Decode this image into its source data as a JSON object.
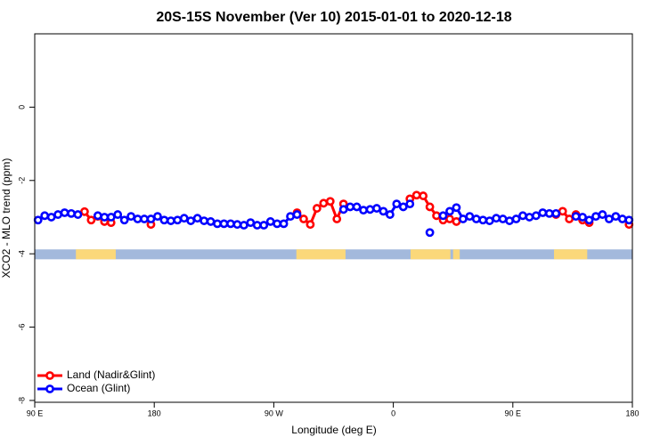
{
  "chart_data": {
    "type": "line",
    "title": "20S-15S November (Ver 10)   2015-01-01 to 2020-12-18",
    "x_label": "Longitude (deg E)",
    "y_label": "XCO2 - MLO trend (ppm)",
    "xlim": [
      90,
      540
    ],
    "ylim": [
      -8.05,
      2
    ],
    "xticks": [
      {
        "value": 90,
        "label": "90 E"
      },
      180,
      {
        "value": 270,
        "label": "90 W"
      },
      {
        "value": 360,
        "label": "0"
      },
      {
        "value": 450,
        "label": "90 E"
      },
      {
        "value": 540,
        "label": "180"
      }
    ],
    "yticks": [
      0,
      -2,
      -4,
      -6,
      -8
    ],
    "legend": "bottomleft",
    "surface_strip": {
      "y": [
        -4.15,
        -3.88
      ],
      "ocean_color": "#a3b9dc",
      "land_color": "#fbd87a",
      "land": [
        [
          121,
          151
        ],
        [
          287,
          324
        ],
        [
          373,
          403
        ],
        [
          405,
          410
        ],
        [
          481,
          506
        ]
      ]
    },
    "x": [
      92.5,
      97.5,
      102.5,
      107.5,
      112.5,
      117.5,
      122.5,
      127.5,
      132.5,
      137.5,
      142.5,
      147.5,
      152.5,
      157.5,
      162.5,
      167.5,
      172.5,
      177.5,
      182.5,
      187.5,
      192.5,
      197.5,
      202.5,
      207.5,
      212.5,
      217.5,
      222.5,
      227.5,
      232.5,
      237.5,
      242.5,
      247.5,
      252.5,
      257.5,
      262.5,
      267.5,
      272.5,
      277.5,
      282.5,
      287.5,
      292.5,
      297.5,
      302.5,
      307.5,
      312.5,
      317.5,
      322.5,
      327.5,
      332.5,
      337.5,
      342.5,
      347.5,
      352.5,
      357.5,
      362.5,
      367.5,
      372.5,
      377.5,
      382.5,
      387.5,
      392.5,
      397.5,
      402.5,
      407.5,
      412.5,
      417.5,
      422.5,
      427.5,
      432.5,
      437.5,
      442.5,
      447.5,
      452.5,
      457.5,
      462.5,
      467.5,
      472.5,
      477.5,
      482.5,
      487.5,
      492.5,
      497.5,
      502.5,
      507.5,
      512.5,
      517.5,
      522.5,
      527.5,
      532.5,
      537.5
    ],
    "series": [
      {
        "name": "Land (Nadir&Glint)",
        "color": "#ff0000",
        "values": [
          null,
          null,
          null,
          null,
          null,
          null,
          null,
          -2.85,
          -3.08,
          -2.98,
          -3.12,
          -3.15,
          null,
          null,
          null,
          null,
          null,
          -3.2,
          null,
          null,
          null,
          null,
          null,
          null,
          null,
          null,
          null,
          null,
          null,
          null,
          null,
          null,
          null,
          null,
          null,
          null,
          null,
          null,
          null,
          -2.88,
          -3.05,
          -3.2,
          -2.76,
          -2.62,
          -2.57,
          -3.05,
          -2.64,
          null,
          null,
          null,
          null,
          null,
          null,
          null,
          null,
          null,
          -2.5,
          -2.4,
          -2.42,
          -2.72,
          -2.96,
          -3.08,
          -3.05,
          -3.12,
          null,
          null,
          null,
          null,
          null,
          null,
          null,
          null,
          null,
          null,
          null,
          null,
          null,
          null,
          -2.93,
          -2.84,
          -3.05,
          -2.93,
          -3.08,
          -3.15,
          null,
          null,
          null,
          null,
          null,
          -3.2
        ]
      },
      {
        "name": "Ocean (Glint)",
        "color": "#0000ff",
        "values": [
          -3.08,
          -2.96,
          -3.0,
          -2.93,
          -2.88,
          -2.9,
          -2.93,
          null,
          null,
          -2.96,
          -3.0,
          -3.0,
          -2.93,
          -3.08,
          -2.98,
          -3.05,
          -3.05,
          -3.05,
          -2.98,
          -3.08,
          -3.1,
          -3.08,
          -3.03,
          -3.1,
          -3.03,
          -3.1,
          -3.12,
          -3.18,
          -3.18,
          -3.18,
          -3.2,
          -3.22,
          -3.15,
          -3.22,
          -3.22,
          -3.12,
          -3.18,
          -3.18,
          -2.98,
          -2.93,
          null,
          null,
          null,
          null,
          null,
          null,
          -2.79,
          -2.72,
          -2.72,
          -2.81,
          -2.79,
          -2.76,
          -2.84,
          -2.93,
          -2.64,
          -2.72,
          -2.64,
          null,
          null,
          -3.42,
          null,
          -2.96,
          -2.84,
          -2.74,
          -3.05,
          -2.98,
          -3.05,
          -3.08,
          -3.1,
          -3.03,
          -3.05,
          -3.1,
          -3.05,
          -2.96,
          -3.0,
          -2.96,
          -2.88,
          -2.9,
          -2.9,
          null,
          null,
          -2.98,
          -3.0,
          -3.08,
          -2.98,
          -2.93,
          -3.05,
          -2.98,
          -3.05,
          -3.08
        ]
      }
    ]
  }
}
